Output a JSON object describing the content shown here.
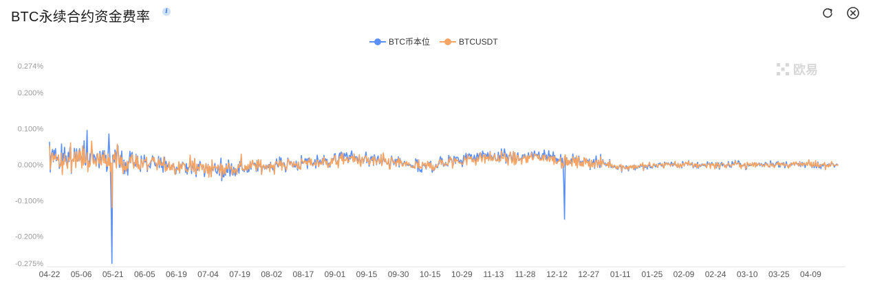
{
  "header": {
    "title": "BTC永续合约资金费率",
    "info_icon": "i"
  },
  "toolbar": {
    "refresh_icon": "refresh-icon",
    "close_icon": "close-icon"
  },
  "watermark": {
    "text": "欧易"
  },
  "chart_data": {
    "type": "line",
    "series": [
      {
        "name": "BTC币本位",
        "color": "#5b8ff9"
      },
      {
        "name": "BTCUSDT",
        "color": "#f6a564"
      }
    ],
    "y_ticks": [
      "0.274%",
      "0.200%",
      "0.100%",
      "0.000%",
      "-0.100%",
      "-0.200%",
      "-0.275%"
    ],
    "y_tick_values": [
      0.274,
      0.2,
      0.1,
      0.0,
      -0.1,
      -0.2,
      -0.275
    ],
    "ylim": [
      -0.275,
      0.274
    ],
    "x_ticks": [
      "04-22",
      "05-06",
      "05-21",
      "06-05",
      "06-19",
      "07-04",
      "07-19",
      "08-02",
      "08-17",
      "09-01",
      "09-15",
      "09-30",
      "10-15",
      "10-29",
      "11-13",
      "11-28",
      "12-12",
      "12-27",
      "01-11",
      "01-25",
      "02-09",
      "02-24",
      "03-10",
      "03-25",
      "04-09"
    ],
    "points_per_tick": 42,
    "y_unit": "%",
    "notable_points": [
      {
        "x": "05-21",
        "series": "BTC币本位",
        "y": -0.275
      },
      {
        "x": "12-03",
        "series": "BTC币本位",
        "y": -0.152
      },
      {
        "x": "05-08",
        "series": "BTC币本位",
        "y": 0.095
      }
    ]
  }
}
